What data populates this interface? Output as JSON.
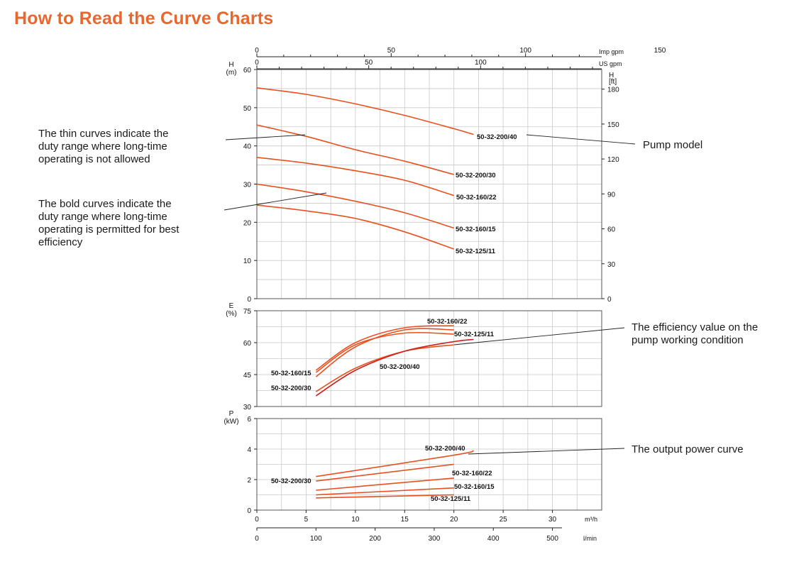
{
  "title": "How to Read the Curve Charts",
  "callouts": {
    "thin": "The thin curves indicate the\nduty range where long-time\noperating is not allowed",
    "bold": "The bold curves indicate the\nduty range where long-time\noperating is permitted for best\nefficiency",
    "pump_model": "Pump model",
    "efficiency": "The efficiency value on the\npump working condition",
    "power": "The output power curve"
  },
  "colors": {
    "title": "#e8672f",
    "curve": "#e8501e",
    "curve_dark": "#cc1f1a",
    "grid": "#c9c9c9",
    "frame": "#555555"
  },
  "chart_data": [
    {
      "type": "line",
      "name": "head",
      "ylabel": "H\n(m)",
      "ylabel_right": "H\n[ft]",
      "xlim": [
        0,
        35
      ],
      "ylim": [
        0,
        60
      ],
      "yticks": [
        0,
        10,
        20,
        30,
        40,
        50,
        60
      ],
      "yticks_right": [
        0,
        30,
        60,
        90,
        120,
        150,
        180
      ],
      "top_axes": [
        {
          "label": "Imp gpm",
          "ticks": [
            0,
            50,
            100,
            150
          ]
        },
        {
          "label": "US gpm",
          "ticks": [
            0,
            50,
            100
          ]
        }
      ],
      "series": [
        {
          "name": "50-32-200/40",
          "x": [
            0,
            5,
            10,
            15,
            20,
            22
          ],
          "y": [
            55.2,
            53.5,
            51.0,
            48.0,
            44.5,
            43.0
          ]
        },
        {
          "name": "50-32-200/30",
          "x": [
            0,
            5,
            10,
            15,
            20
          ],
          "y": [
            45.5,
            42.5,
            39.0,
            36.0,
            32.5
          ]
        },
        {
          "name": "50-32-160/22",
          "x": [
            0,
            5,
            10,
            15,
            20
          ],
          "y": [
            37.0,
            35.5,
            33.5,
            31.0,
            27.0
          ]
        },
        {
          "name": "50-32-160/15",
          "x": [
            0,
            5,
            10,
            15,
            20
          ],
          "y": [
            30.0,
            28.0,
            25.5,
            22.5,
            18.5
          ]
        },
        {
          "name": "50-32-125/11",
          "x": [
            0,
            5,
            10,
            15,
            20
          ],
          "y": [
            24.5,
            23.0,
            21.0,
            17.5,
            13.0
          ]
        }
      ]
    },
    {
      "type": "line",
      "name": "efficiency",
      "ylabel": "E\n(%)",
      "xlim": [
        0,
        35
      ],
      "ylim": [
        30,
        75
      ],
      "yticks": [
        30,
        45,
        60,
        75
      ],
      "series": [
        {
          "name": "50-32-160/22",
          "x": [
            6,
            10,
            15,
            20
          ],
          "y": [
            47.0,
            60.0,
            67.0,
            68.0
          ]
        },
        {
          "name": "50-32-125/11",
          "x": [
            6,
            10,
            15,
            20
          ],
          "y": [
            46.0,
            59.0,
            64.5,
            64.0
          ]
        },
        {
          "name": "50-32-160/15",
          "x": [
            6,
            10,
            15,
            20
          ],
          "y": [
            44.0,
            58.0,
            66.0,
            66.0
          ]
        },
        {
          "name": "50-32-200/30",
          "x": [
            6,
            10,
            15,
            20
          ],
          "y": [
            37.0,
            48.0,
            56.0,
            59.0
          ]
        },
        {
          "name": "50-32-200/40",
          "x": [
            6,
            10,
            15,
            20,
            22
          ],
          "y": [
            35.0,
            47.0,
            56.0,
            60.5,
            61.5
          ]
        }
      ]
    },
    {
      "type": "line",
      "name": "power",
      "ylabel": "P\n(kW)",
      "xlim": [
        0,
        35
      ],
      "ylim": [
        0,
        6
      ],
      "yticks": [
        0,
        2,
        4,
        6
      ],
      "xlabel": "m³/h",
      "xticks": [
        0,
        5,
        10,
        15,
        20,
        25,
        30
      ],
      "xlabel2": "l/min",
      "xticks2": [
        0,
        100,
        200,
        300,
        400,
        500
      ],
      "series": [
        {
          "name": "50-32-200/40",
          "x": [
            6,
            20,
            22
          ],
          "y": [
            2.2,
            3.6,
            3.9
          ]
        },
        {
          "name": "50-32-200/30",
          "x": [
            6,
            20
          ],
          "y": [
            1.9,
            3.0
          ]
        },
        {
          "name": "50-32-160/22",
          "x": [
            6,
            20
          ],
          "y": [
            1.3,
            2.1
          ]
        },
        {
          "name": "50-32-160/15",
          "x": [
            6,
            20
          ],
          "y": [
            1.0,
            1.45
          ]
        },
        {
          "name": "50-32-125/11",
          "x": [
            6,
            20
          ],
          "y": [
            0.8,
            1.0
          ]
        }
      ]
    }
  ]
}
